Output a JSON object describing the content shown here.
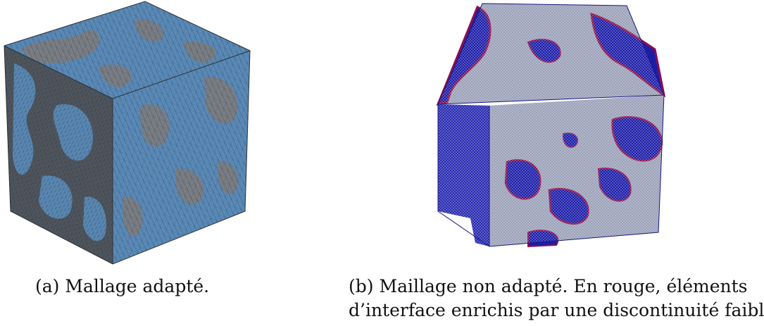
{
  "figure_a": {
    "tag": "(a)",
    "caption": "Mallage adapté.",
    "colors": {
      "phase_matrix": "#5a8ab7",
      "phase_inclusion": "#7b7e83",
      "mesh_line": "#2a3f55"
    }
  },
  "figure_b": {
    "tag": "(b)",
    "caption_line1": "Maillage non adapté. En rouge, éléments",
    "caption_line2": "d’interface enrichis par une discontinuité faible.",
    "colors": {
      "phase_dense": "#1d1ea8",
      "phase_light": "#9aa0b8",
      "interface": "#8a1050"
    }
  }
}
